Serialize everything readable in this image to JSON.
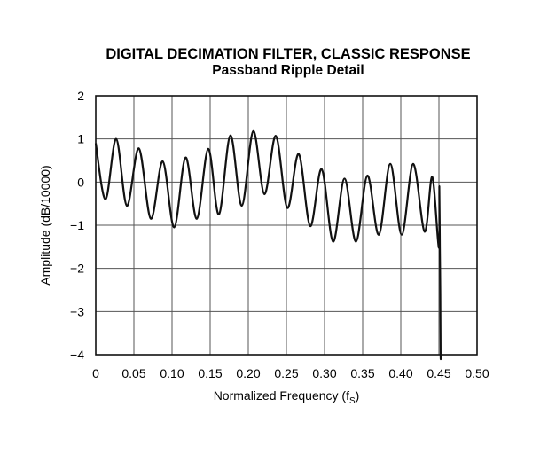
{
  "chart_data": {
    "type": "line",
    "title": "DIGITAL DECIMATION FILTER, CLASSIC RESPONSE",
    "subtitle": "Passband Ripple Detail",
    "xlabel": "Normalized Frequency (f",
    "xlabel_sub": "S",
    "xlabel_close": ")",
    "ylabel": "Amplitude (dB/10000)",
    "xlim": [
      0,
      0.5
    ],
    "ylim": [
      -4,
      2
    ],
    "xticks": [
      0,
      0.05,
      0.1,
      0.15,
      0.2,
      0.25,
      0.3,
      0.35,
      0.4,
      0.45,
      0.5
    ],
    "xtick_labels": [
      "0",
      "0.05",
      "0.10",
      "0.15",
      "0.20",
      "0.25",
      "0.30",
      "0.35",
      "0.40",
      "0.45",
      "0.50"
    ],
    "yticks": [
      2,
      1,
      0,
      -1,
      -2,
      -3,
      -4
    ],
    "ytick_labels": [
      "2",
      "1",
      "0",
      "−1",
      "−2",
      "−3",
      "−4"
    ],
    "grid": true,
    "line_color": "#111111",
    "series": [
      {
        "x": [
          0,
          0.0128,
          0.0268,
          0.0408,
          0.0565,
          0.0722,
          0.0878,
          0.1028,
          0.1178,
          0.1325,
          0.1475,
          0.1615,
          0.1765,
          0.1915,
          0.2065,
          0.2212,
          0.2362,
          0.2512,
          0.2662,
          0.2812,
          0.2962,
          0.3112,
          0.3262,
          0.3412,
          0.3562,
          0.3712,
          0.3862,
          0.4012,
          0.4162,
          0.4312,
          0.4412,
          0.4498,
          0.4505,
          0.4512,
          0.4518,
          0.4522,
          0.4528
        ],
        "y": [
          0.9,
          -0.4,
          1.0,
          -0.55,
          0.78,
          -0.85,
          0.48,
          -1.05,
          0.57,
          -0.85,
          0.77,
          -0.75,
          1.08,
          -0.55,
          1.18,
          -0.28,
          1.07,
          -0.6,
          0.65,
          -1.02,
          0.3,
          -1.38,
          0.08,
          -1.38,
          0.15,
          -1.22,
          0.42,
          -1.22,
          0.42,
          -1.15,
          0.12,
          -1.52,
          -0.1,
          -1.5,
          -2.6,
          -4.0,
          -4.0
        ]
      }
    ]
  }
}
